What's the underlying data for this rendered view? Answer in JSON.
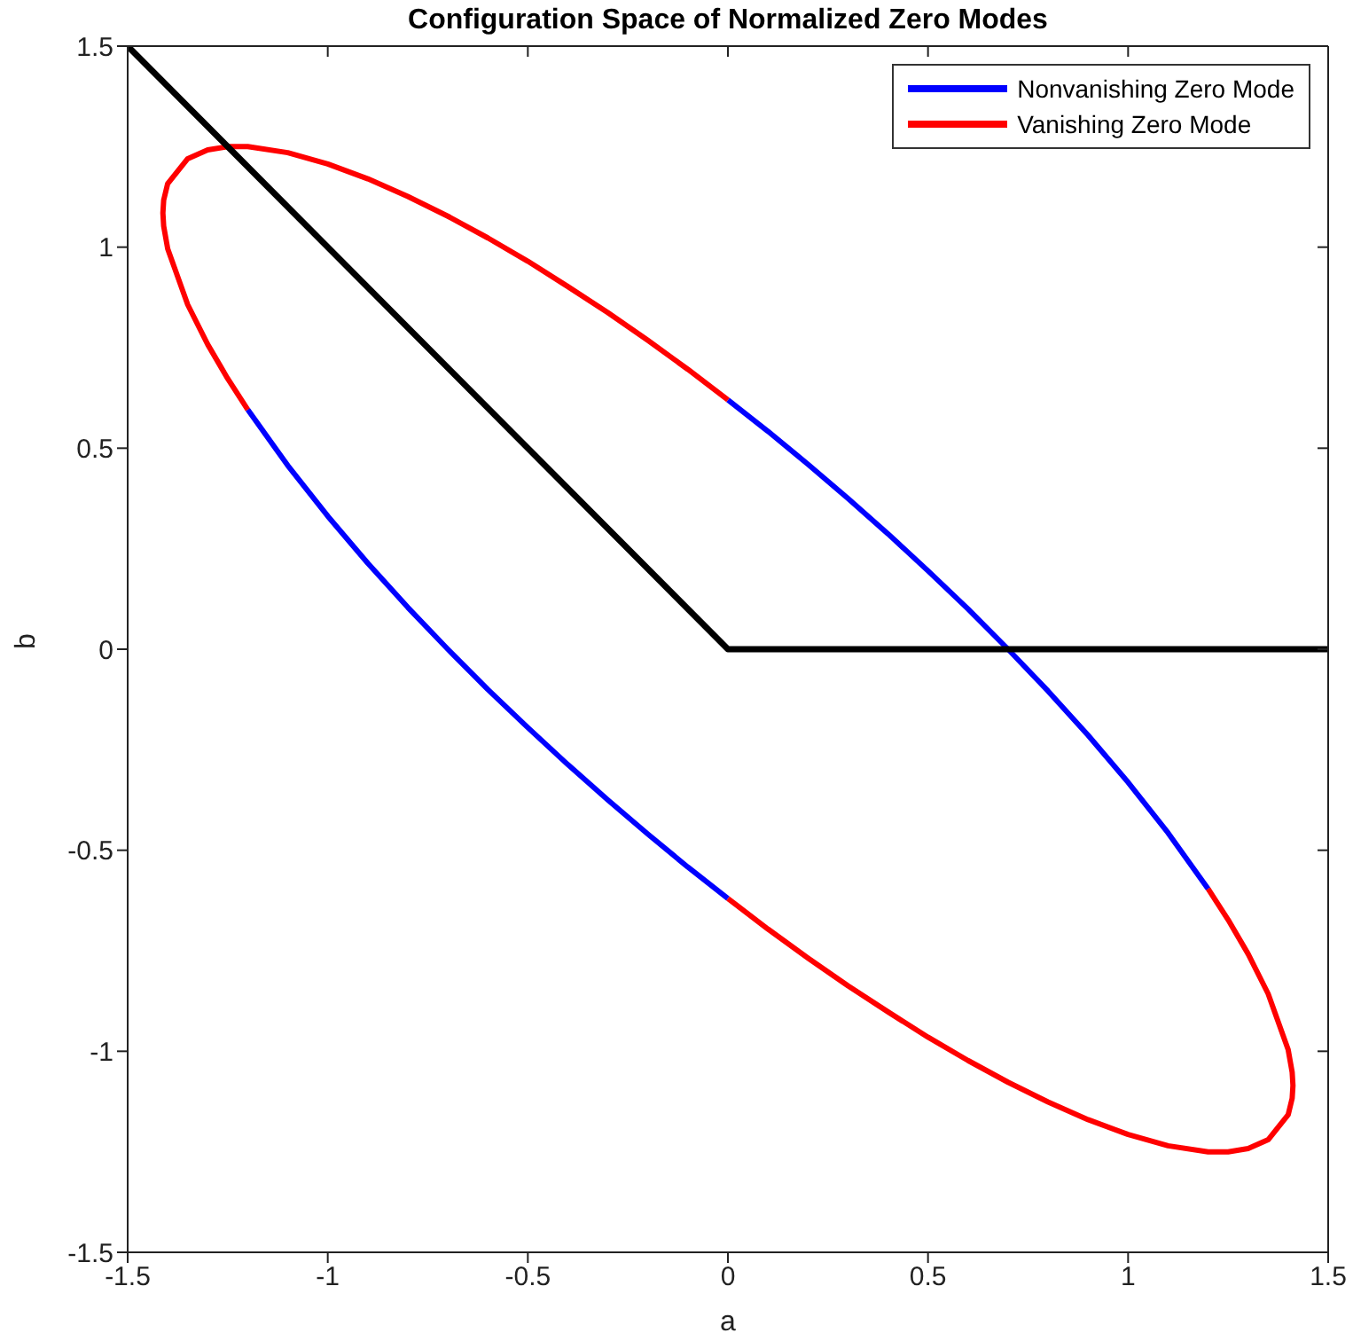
{
  "chart_data": {
    "type": "line",
    "title": "Configuration Space of Normalized Zero Modes",
    "xlabel": "a",
    "ylabel": "b",
    "xlim": [
      -1.5,
      1.5
    ],
    "xticks": [
      -1.5,
      -1,
      -0.5,
      0,
      0.5,
      1,
      1.5
    ],
    "ylim": [
      -1.5,
      1.5
    ],
    "yticks": [
      -1.5,
      -1,
      -0.5,
      0,
      0.5,
      1,
      1.5
    ],
    "legend": "top right",
    "marker": "none",
    "line_style": "solid",
    "series": [
      {
        "name": "Nonvanishing Zero Mode",
        "color": "#0000ff",
        "x": [
          0,
          0.1,
          0.2,
          0.3,
          0.4,
          0.5,
          0.6,
          0.7,
          0.8,
          0.9,
          1.0,
          1.1,
          1.2,
          null,
          0,
          -0.1,
          -0.2,
          -0.3,
          -0.4,
          -0.5,
          -0.6,
          -0.7,
          -0.8,
          -0.9,
          -1.0,
          -1.1,
          -1.2
        ],
        "values": [
          0.62,
          0.542,
          0.46,
          0.375,
          0.287,
          0.195,
          0.1,
          0,
          -0.104,
          -0.214,
          -0.331,
          -0.457,
          -0.596,
          null,
          -0.62,
          -0.542,
          -0.46,
          -0.375,
          -0.287,
          -0.195,
          -0.1,
          0,
          0.104,
          0.214,
          0.331,
          0.457,
          0.596
        ]
      },
      {
        "name": "Vanishing Zero Mode",
        "color": "#ff0000",
        "x": [
          1.2,
          1.25,
          1.3,
          1.35,
          1.4,
          1.41,
          1.412,
          1.41,
          1.4,
          1.35,
          1.3,
          1.25,
          1.2,
          1.1,
          1.0,
          0.9,
          0.8,
          0.7,
          0.6,
          0.5,
          0.4,
          0.3,
          0.2,
          0.1,
          0,
          null,
          -1.2,
          -1.25,
          -1.3,
          -1.35,
          -1.4,
          -1.41,
          -1.412,
          -1.41,
          -1.4,
          -1.35,
          -1.3,
          -1.25,
          -1.2,
          -1.1,
          -1.0,
          -0.9,
          -0.8,
          -0.7,
          -0.6,
          -0.5,
          -0.4,
          -0.3,
          -0.2,
          -0.1,
          0
        ],
        "values": [
          -0.596,
          -0.673,
          -0.758,
          -0.857,
          -0.996,
          -1.052,
          -1.085,
          -1.117,
          -1.158,
          -1.22,
          -1.242,
          -1.25,
          -1.25,
          -1.235,
          -1.207,
          -1.17,
          -1.126,
          -1.077,
          -1.023,
          -0.965,
          -0.902,
          -0.837,
          -0.768,
          -0.696,
          -0.62,
          null,
          0.596,
          0.673,
          0.758,
          0.857,
          0.996,
          1.052,
          1.085,
          1.117,
          1.158,
          1.22,
          1.242,
          1.25,
          1.25,
          1.235,
          1.207,
          1.17,
          1.126,
          1.077,
          1.023,
          0.965,
          0.902,
          0.837,
          0.768,
          0.696,
          0.62
        ]
      },
      {
        "color": "#000000",
        "x": [
          -1.5,
          0,
          1.5
        ],
        "values": [
          1.5,
          0,
          0
        ]
      }
    ]
  }
}
